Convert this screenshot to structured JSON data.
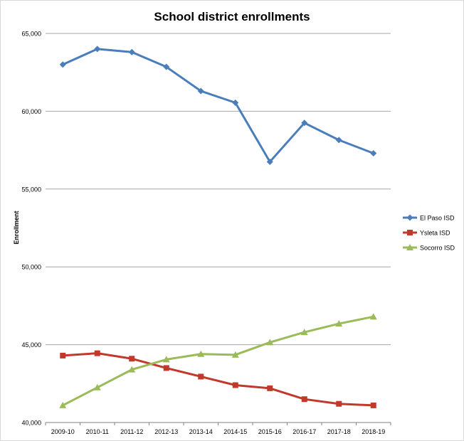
{
  "chart_data": {
    "type": "line",
    "title": "School district enrollments",
    "xlabel": "",
    "ylabel": "Enrollment",
    "categories": [
      "2009-10",
      "2010-11",
      "2011-12",
      "2012-13",
      "2013-14",
      "2014-15",
      "2015-16",
      "2016-17",
      "2017-18",
      "2018-19"
    ],
    "ylim": [
      40000,
      65000
    ],
    "yticks": [
      40000,
      45000,
      50000,
      55000,
      60000,
      65000
    ],
    "ytick_labels": [
      "40,000",
      "45,000",
      "50,000",
      "55,000",
      "60,000",
      "65,000"
    ],
    "grid": true,
    "legend_position": "right",
    "series": [
      {
        "name": "El Paso ISD",
        "color": "#4a7ebb",
        "marker": "diamond",
        "values": [
          63000,
          64000,
          63800,
          62850,
          61300,
          60550,
          56750,
          59250,
          58150,
          57300
        ]
      },
      {
        "name": "Ysleta ISD",
        "color": "#c0392b",
        "marker": "square",
        "values": [
          44300,
          44450,
          44100,
          43500,
          42950,
          42400,
          42200,
          41500,
          41200,
          41100
        ]
      },
      {
        "name": "Socorro ISD",
        "color": "#9bbb59",
        "marker": "triangle",
        "values": [
          41100,
          42250,
          43400,
          44050,
          44400,
          44350,
          45150,
          45800,
          46350,
          46800
        ]
      }
    ]
  }
}
